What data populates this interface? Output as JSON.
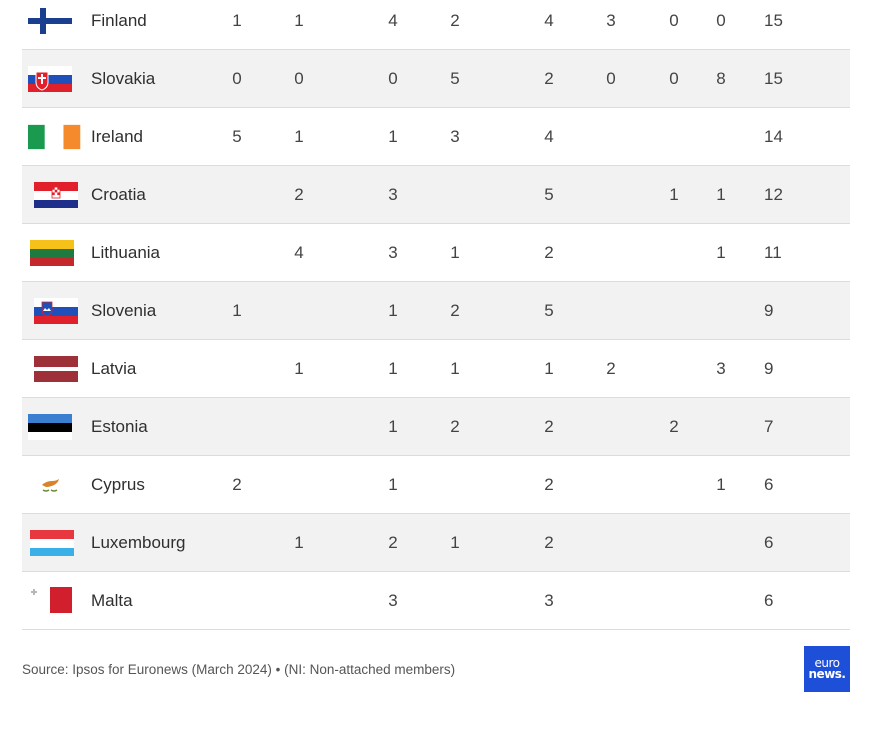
{
  "rows": [
    {
      "country": "Finland",
      "flag": "finland-flag",
      "cells": [
        "1",
        "1",
        "4",
        "2",
        "4",
        "3",
        "0",
        "0",
        "15"
      ]
    },
    {
      "country": "Slovakia",
      "flag": "slovakia-flag",
      "cells": [
        "0",
        "0",
        "0",
        "5",
        "2",
        "0",
        "0",
        "8",
        "15"
      ]
    },
    {
      "country": "Ireland",
      "flag": "ireland-flag",
      "cells": [
        "5",
        "1",
        "1",
        "3",
        "4",
        "",
        "",
        "",
        "14"
      ]
    },
    {
      "country": "Croatia",
      "flag": "croatia-flag",
      "cells": [
        "",
        "2",
        "3",
        "",
        "5",
        "",
        "1",
        "1",
        "12"
      ]
    },
    {
      "country": "Lithuania",
      "flag": "lithuania-flag",
      "cells": [
        "",
        "4",
        "3",
        "1",
        "2",
        "",
        "",
        "1",
        "11"
      ]
    },
    {
      "country": "Slovenia",
      "flag": "slovenia-flag",
      "cells": [
        "1",
        "",
        "1",
        "2",
        "5",
        "",
        "",
        "",
        "9"
      ]
    },
    {
      "country": "Latvia",
      "flag": "latvia-flag",
      "cells": [
        "",
        "1",
        "1",
        "1",
        "1",
        "2",
        "",
        "3",
        "9"
      ]
    },
    {
      "country": "Estonia",
      "flag": "estonia-flag",
      "cells": [
        "",
        "",
        "1",
        "2",
        "2",
        "",
        "2",
        "",
        "7"
      ]
    },
    {
      "country": "Cyprus",
      "flag": "cyprus-flag",
      "cells": [
        "2",
        "",
        "1",
        "",
        "2",
        "",
        "",
        "1",
        "6"
      ]
    },
    {
      "country": "Luxembourg",
      "flag": "luxembourg-flag",
      "cells": [
        "",
        "1",
        "2",
        "1",
        "2",
        "",
        "",
        "",
        "6"
      ]
    },
    {
      "country": "Malta",
      "flag": "malta-flag",
      "cells": [
        "",
        "",
        "3",
        "",
        "3",
        "",
        "",
        "",
        "6"
      ]
    }
  ],
  "source": "Source: Ipsos for Euronews (March 2024) • (NI: Non-attached members)",
  "logo": {
    "line1": "euro",
    "line2": "news."
  }
}
